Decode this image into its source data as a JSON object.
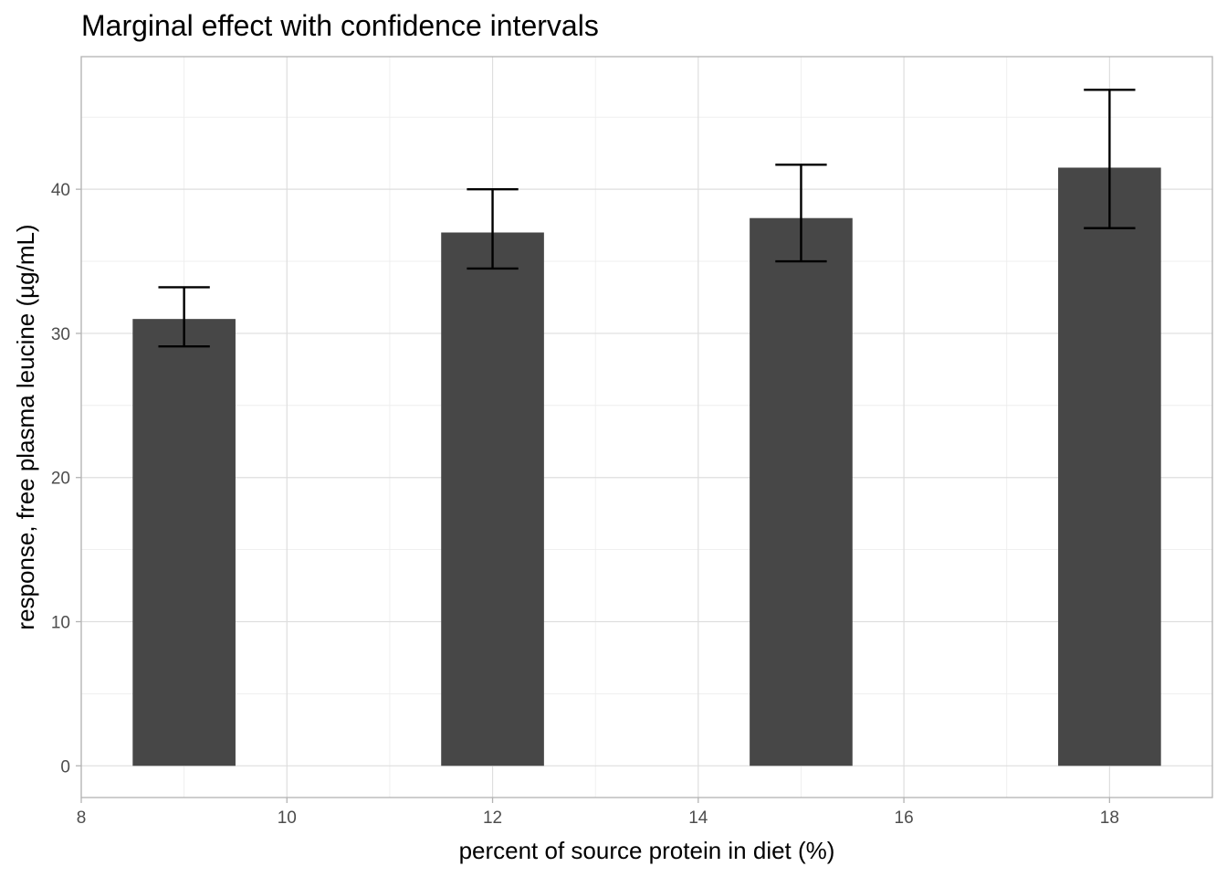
{
  "chart_data": {
    "type": "bar",
    "title": "Marginal effect with confidence intervals",
    "xlabel": "percent of source protein in diet (%)",
    "ylabel": "response, free plasma leucine (µg/mL)",
    "x": [
      9,
      12,
      15,
      18
    ],
    "values": [
      31.0,
      37.0,
      38.0,
      41.5
    ],
    "ci_low": [
      29.1,
      34.5,
      35.0,
      37.3
    ],
    "ci_high": [
      33.2,
      40.0,
      41.7,
      46.9
    ],
    "bar_width": 1.0,
    "xlim": [
      8,
      19
    ],
    "ylim": [
      -2.2,
      49.2
    ],
    "xticks": [
      8,
      10,
      12,
      14,
      16,
      18
    ],
    "yticks": [
      0,
      10,
      20,
      30,
      40
    ],
    "xtick_labels": [
      "8",
      "10",
      "12",
      "14",
      "16",
      "18"
    ],
    "ytick_labels": [
      "0",
      "10",
      "20",
      "30",
      "40"
    ],
    "grid": true,
    "bar_color": "#474747",
    "errorbar_color": "#000000"
  }
}
